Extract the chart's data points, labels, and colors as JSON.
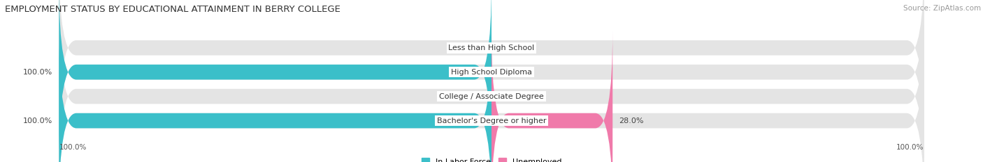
{
  "title": "EMPLOYMENT STATUS BY EDUCATIONAL ATTAINMENT IN BERRY COLLEGE",
  "source": "Source: ZipAtlas.com",
  "categories": [
    "Less than High School",
    "High School Diploma",
    "College / Associate Degree",
    "Bachelor's Degree or higher"
  ],
  "in_labor_force": [
    0.0,
    100.0,
    0.0,
    100.0
  ],
  "unemployed": [
    0.0,
    0.0,
    0.0,
    28.0
  ],
  "labor_color": "#3bbfc9",
  "unemployed_color": "#f07aaa",
  "bar_bg_color": "#e4e4e4",
  "bar_height": 0.62,
  "xlim": [
    -100,
    100
  ],
  "legend_labor": "In Labor Force",
  "legend_unemployed": "Unemployed",
  "fig_bg": "#ffffff",
  "axis_bg": "#ffffff",
  "title_fontsize": 9.5,
  "label_fontsize": 8,
  "tick_fontsize": 7.5,
  "source_fontsize": 7.5,
  "cat_label_fontsize": 8
}
